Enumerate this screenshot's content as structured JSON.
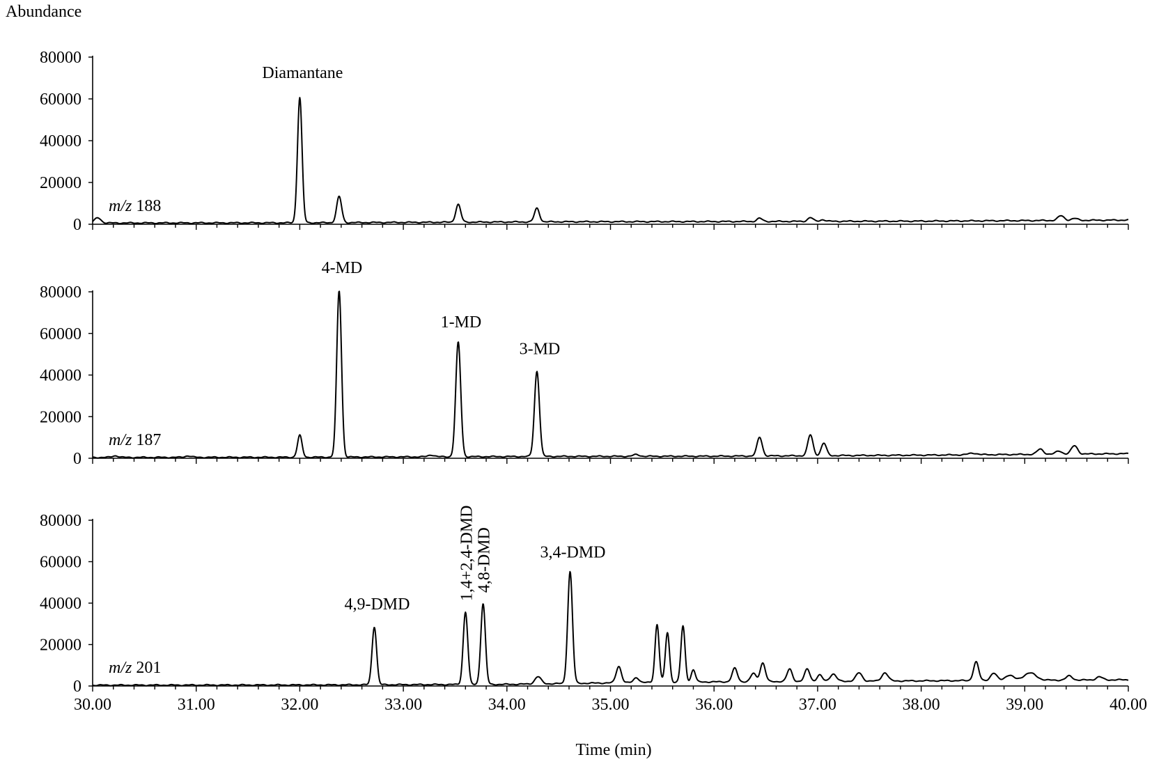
{
  "chart_data": {
    "type": "line",
    "ylabel": "Abundance",
    "xlabel": "Time (min)",
    "xlim": [
      30.0,
      40.0
    ],
    "x_ticks": [
      "30.00",
      "31.00",
      "32.00",
      "33.00",
      "34.00",
      "35.00",
      "36.00",
      "37.00",
      "38.00",
      "39.00",
      "40.00"
    ],
    "x_tick_values": [
      30,
      31,
      32,
      33,
      34,
      35,
      36,
      37,
      38,
      39,
      40
    ],
    "y_ticks": [
      "0",
      "20000",
      "40000",
      "60000",
      "80000"
    ],
    "y_tick_values": [
      0,
      20000,
      40000,
      60000,
      80000
    ],
    "ylim": [
      0,
      80000
    ],
    "grid": false,
    "colors": {
      "line": "#000000",
      "axis": "#000000",
      "background": "#ffffff"
    },
    "panels": [
      {
        "ion_prefix": "m/z",
        "ion_value": "188",
        "baseline": [
          [
            30.0,
            600
          ],
          [
            32.0,
            700
          ],
          [
            34.5,
            1200
          ],
          [
            36.0,
            1300
          ],
          [
            38.0,
            1500
          ],
          [
            40.0,
            2000
          ]
        ],
        "peaks": [
          {
            "rt": 30.05,
            "height": 2500,
            "width": 0.03
          },
          {
            "rt": 32.0,
            "height": 60000,
            "width": 0.022
          },
          {
            "rt": 32.38,
            "height": 12500,
            "width": 0.024
          },
          {
            "rt": 33.53,
            "height": 8500,
            "width": 0.024
          },
          {
            "rt": 34.29,
            "height": 6500,
            "width": 0.024
          },
          {
            "rt": 36.44,
            "height": 1500,
            "width": 0.025
          },
          {
            "rt": 36.93,
            "height": 1800,
            "width": 0.025
          },
          {
            "rt": 37.05,
            "height": 800,
            "width": 0.025
          },
          {
            "rt": 39.35,
            "height": 2200,
            "width": 0.03
          },
          {
            "rt": 39.48,
            "height": 900,
            "width": 0.03
          }
        ],
        "labels": [
          {
            "text": "Diamantane",
            "rt": 32.0,
            "y": 70000,
            "rotated": false
          }
        ]
      },
      {
        "ion_prefix": "m/z",
        "ion_value": "187",
        "baseline": [
          [
            30.0,
            400
          ],
          [
            32.0,
            500
          ],
          [
            34.5,
            900
          ],
          [
            36.0,
            1000
          ],
          [
            38.0,
            1500
          ],
          [
            40.0,
            2200
          ]
        ],
        "peaks": [
          {
            "rt": 30.22,
            "height": 800,
            "width": 0.03
          },
          {
            "rt": 30.92,
            "height": 700,
            "width": 0.03
          },
          {
            "rt": 32.0,
            "height": 10500,
            "width": 0.022
          },
          {
            "rt": 32.38,
            "height": 80000,
            "width": 0.023
          },
          {
            "rt": 33.27,
            "height": 900,
            "width": 0.03
          },
          {
            "rt": 33.53,
            "height": 55000,
            "width": 0.024
          },
          {
            "rt": 34.29,
            "height": 41000,
            "width": 0.024
          },
          {
            "rt": 35.25,
            "height": 800,
            "width": 0.03
          },
          {
            "rt": 36.44,
            "height": 9000,
            "width": 0.025
          },
          {
            "rt": 36.93,
            "height": 10000,
            "width": 0.025
          },
          {
            "rt": 37.06,
            "height": 6000,
            "width": 0.025
          },
          {
            "rt": 38.5,
            "height": 800,
            "width": 0.04
          },
          {
            "rt": 39.15,
            "height": 2500,
            "width": 0.03
          },
          {
            "rt": 39.33,
            "height": 1500,
            "width": 0.03
          },
          {
            "rt": 39.48,
            "height": 4000,
            "width": 0.03
          }
        ],
        "labels": [
          {
            "text": "4-MD",
            "rt": 32.38,
            "y": 89000,
            "rotated": false
          },
          {
            "text": "1-MD",
            "rt": 33.53,
            "y": 63000,
            "rotated": false
          },
          {
            "text": "3-MD",
            "rt": 34.29,
            "y": 50000,
            "rotated": false
          }
        ]
      },
      {
        "ion_prefix": "m/z",
        "ion_value": "201",
        "baseline": [
          [
            30.0,
            400
          ],
          [
            32.0,
            500
          ],
          [
            34.0,
            800
          ],
          [
            35.0,
            1500
          ],
          [
            36.0,
            2000
          ],
          [
            38.0,
            2500
          ],
          [
            40.0,
            3000
          ]
        ],
        "peaks": [
          {
            "rt": 32.72,
            "height": 28000,
            "width": 0.022
          },
          {
            "rt": 33.6,
            "height": 35000,
            "width": 0.022
          },
          {
            "rt": 33.77,
            "height": 39000,
            "width": 0.022
          },
          {
            "rt": 34.3,
            "height": 3500,
            "width": 0.03
          },
          {
            "rt": 34.61,
            "height": 54000,
            "width": 0.023
          },
          {
            "rt": 35.08,
            "height": 8000,
            "width": 0.025
          },
          {
            "rt": 35.25,
            "height": 2500,
            "width": 0.025
          },
          {
            "rt": 35.45,
            "height": 28000,
            "width": 0.02
          },
          {
            "rt": 35.55,
            "height": 24000,
            "width": 0.02
          },
          {
            "rt": 35.7,
            "height": 27000,
            "width": 0.02
          },
          {
            "rt": 35.8,
            "height": 6000,
            "width": 0.02
          },
          {
            "rt": 36.2,
            "height": 6500,
            "width": 0.025
          },
          {
            "rt": 36.38,
            "height": 4000,
            "width": 0.025
          },
          {
            "rt": 36.47,
            "height": 9000,
            "width": 0.025
          },
          {
            "rt": 36.73,
            "height": 6000,
            "width": 0.025
          },
          {
            "rt": 36.9,
            "height": 6000,
            "width": 0.025
          },
          {
            "rt": 37.02,
            "height": 3000,
            "width": 0.025
          },
          {
            "rt": 37.15,
            "height": 3500,
            "width": 0.03
          },
          {
            "rt": 37.4,
            "height": 4000,
            "width": 0.03
          },
          {
            "rt": 37.65,
            "height": 4000,
            "width": 0.03
          },
          {
            "rt": 38.53,
            "height": 9000,
            "width": 0.025
          },
          {
            "rt": 38.7,
            "height": 3500,
            "width": 0.03
          },
          {
            "rt": 38.85,
            "height": 2500,
            "width": 0.04
          },
          {
            "rt": 39.05,
            "height": 3500,
            "width": 0.06
          },
          {
            "rt": 39.43,
            "height": 2000,
            "width": 0.03
          },
          {
            "rt": 39.72,
            "height": 1500,
            "width": 0.03
          }
        ],
        "labels": [
          {
            "text": "4,9-DMD",
            "rt": 32.72,
            "y": 37000,
            "rotated": false
          },
          {
            "text": "1,4+2,4-DMD",
            "rt": 33.6,
            "y": 41000,
            "rotated": true
          },
          {
            "text": "4,8-DMD",
            "rt": 33.77,
            "y": 45000,
            "rotated": true
          },
          {
            "text": "3,4-DMD",
            "rt": 34.61,
            "y": 62000,
            "rotated": false
          }
        ]
      }
    ]
  }
}
